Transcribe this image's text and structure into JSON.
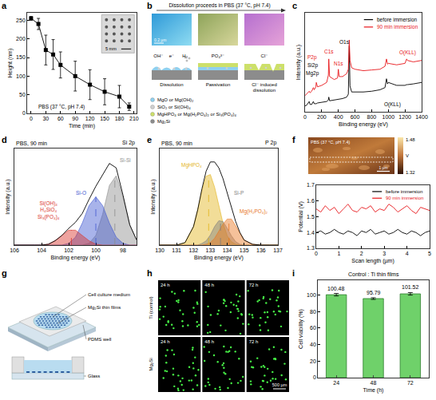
{
  "chart_data": [
    {
      "panel": "a",
      "type": "line",
      "x": [
        0,
        15,
        30,
        45,
        60,
        90,
        120,
        150,
        180,
        200
      ],
      "values": [
        255,
        240,
        170,
        158,
        130,
        100,
        77,
        58,
        45,
        18
      ],
      "error": [
        5,
        15,
        40,
        40,
        35,
        40,
        40,
        35,
        30,
        10
      ],
      "color": "#000000",
      "marker": "square",
      "xlabel": "Time (min)",
      "ylabel": "Height (nm)",
      "xlim": [
        -8,
        215
      ],
      "xticks": [
        0,
        30,
        60,
        90,
        120,
        150,
        180,
        210
      ],
      "ylim": [
        0,
        270
      ],
      "yticks": [
        0,
        50,
        100,
        150,
        200,
        250
      ],
      "annotations": [
        {
          "text": "PBS (37 °C, pH 7.4)",
          "x": 62,
          "y": 18
        }
      ],
      "inset": {
        "scale": "5 mm"
      }
    },
    {
      "panel": "c",
      "type": "line",
      "x": [
        0,
        20,
        50,
        60,
        80,
        100,
        110,
        130,
        135,
        150,
        200,
        260,
        280,
        285,
        295,
        350,
        390,
        400,
        410,
        450,
        500,
        520,
        531,
        540,
        560,
        600,
        700,
        800,
        900,
        960,
        978,
        990,
        1000,
        1100,
        1200,
        1220,
        1230,
        1300,
        1400
      ],
      "series": [
        {
          "name": "before immersion",
          "color": "#000000",
          "values": [
            8,
            9,
            14,
            10,
            10,
            14,
            11,
            11,
            11,
            12,
            13,
            14,
            16,
            20,
            15,
            16,
            17,
            17,
            17,
            18,
            20,
            24,
            90,
            35,
            27,
            27,
            27,
            28,
            30,
            33,
            45,
            38,
            40,
            36,
            36,
            37,
            37,
            38,
            40
          ]
        },
        {
          "name": "90 min immersion",
          "color": "#e8161b",
          "values": [
            22,
            24,
            28,
            26,
            28,
            33,
            30,
            34,
            40,
            34,
            36,
            40,
            50,
            72,
            48,
            44,
            46,
            58,
            48,
            48,
            52,
            58,
            98,
            70,
            60,
            58,
            56,
            57,
            58,
            62,
            72,
            65,
            66,
            64,
            66,
            72,
            70,
            68,
            70
          ]
        }
      ],
      "xlabel": "Binding energy (eV)",
      "ylabel": "Intensity (a.u.)",
      "xlim": [
        0,
        1400
      ],
      "xticks": [
        0,
        200,
        400,
        600,
        800,
        1000,
        1200,
        1400
      ],
      "ylim": [
        0,
        135
      ],
      "tick_labels": "x",
      "legend": "top right",
      "annotations": [
        {
          "text": "Mg2p",
          "x": 90,
          "y": 52,
          "color": "#000000"
        },
        {
          "text": "Si2p",
          "x": 90,
          "y": 63,
          "color": "#000000"
        },
        {
          "text": "P2p",
          "x": 90,
          "y": 74,
          "color": "#e8161b"
        },
        {
          "text": "C1s",
          "x": 285,
          "y": 82,
          "color": "#e8161b"
        },
        {
          "text": "N1s",
          "x": 400,
          "y": 66,
          "color": "#e8161b"
        },
        {
          "text": "O1s",
          "x": 470,
          "y": 95,
          "color": "#000000"
        },
        {
          "text": "O(KLL)",
          "x": 1050,
          "y": 10,
          "color": "#000000"
        },
        {
          "text": "O(KLL)",
          "x": 1230,
          "y": 81,
          "color": "#e8161b"
        }
      ]
    },
    {
      "panel": "d",
      "type": "line",
      "title": "Si 2p",
      "subtitle": "PBS, 90 min",
      "x": [
        97,
        97.5,
        98,
        98.5,
        99,
        99.5,
        100,
        100.5,
        101,
        101.5,
        102,
        102.5,
        103,
        103.5,
        104,
        104.5,
        105,
        105.5,
        106
      ],
      "series": [
        {
          "name": "Si-Si",
          "type": "area",
          "color": "#8c8c8c",
          "center": 98.6,
          "label": {
            "x": 97.8,
            "y": 97
          },
          "values": [
            6,
            23,
            55,
            79,
            68,
            35,
            11,
            2,
            0,
            0,
            0,
            0,
            0,
            0,
            0,
            0,
            0,
            0,
            0
          ]
        },
        {
          "name": "Si-O",
          "type": "area",
          "color": "#3f57d0",
          "center": 100,
          "label": {
            "x": 101.1,
            "y": 60
          },
          "values": [
            0,
            0,
            2,
            9,
            25,
            45,
            55,
            45,
            25,
            9,
            2,
            0,
            0,
            0,
            0,
            0,
            0,
            0,
            0
          ]
        },
        {
          "name": "Si(OH)₄\nH₄SiO₄\nSi₃(PO₄)₄",
          "type": "area",
          "color": "#d9342b",
          "center": 101.8,
          "label": {
            "x": 103.5,
            "y": 40
          },
          "values": [
            0,
            0,
            0,
            0,
            0,
            0,
            1,
            5,
            11,
            17,
            17,
            11,
            5,
            1,
            0,
            0,
            0,
            0,
            0
          ]
        },
        {
          "type": "line",
          "color": "#000000",
          "values": [
            6,
            23,
            57,
            88,
            93,
            80,
            67,
            52,
            36,
            26,
            19,
            11,
            5,
            1,
            0,
            0,
            0,
            0,
            0
          ]
        }
      ],
      "xlabel": "Binding energy (eV)",
      "ylabel": "Intensity (a.u.)",
      "xlim": [
        106,
        97
      ],
      "xticks": [
        106,
        104,
        102,
        100,
        98
      ],
      "ylim": [
        0,
        110
      ],
      "tick_labels": "x"
    },
    {
      "panel": "e",
      "type": "line",
      "title": "P 2p",
      "subtitle": "PBS, 90 min",
      "x": [
        130,
        130.5,
        131,
        131.5,
        132,
        132.25,
        132.5,
        132.75,
        133,
        133.25,
        133.5,
        133.75,
        134,
        134.25,
        134.5,
        134.75,
        135,
        135.5,
        136,
        136.5,
        137
      ],
      "series": [
        {
          "name": "MgHPO₄",
          "type": "area",
          "color": "#e3b41b",
          "center": 132.9,
          "label": {
            "x": 131.9,
            "y": 95
          },
          "values": [
            0,
            0,
            0,
            3,
            22,
            42,
            65,
            82,
            84,
            69,
            47,
            26,
            11,
            4,
            1,
            0,
            0,
            0,
            0,
            0,
            0
          ]
        },
        {
          "name": "Si-P",
          "type": "area",
          "color": "#7f7f7f",
          "center": 133.6,
          "label": {
            "x": 134.7,
            "y": 62
          },
          "values": [
            0,
            0,
            0,
            0,
            0,
            0,
            2,
            5,
            12,
            22,
            29,
            28,
            20,
            11,
            4,
            1,
            0,
            0,
            0,
            0,
            0
          ]
        },
        {
          "name": "Mg(H₂PO₄)₂",
          "type": "area",
          "color": "#e8761e",
          "center": 134.1,
          "label": {
            "x": 135.6,
            "y": 40
          },
          "values": [
            0,
            0,
            0,
            0,
            0,
            0,
            0,
            1,
            3,
            8,
            16,
            25,
            31,
            31,
            23,
            14,
            6,
            1,
            0,
            0,
            0
          ]
        },
        {
          "type": "line",
          "color": "#000000",
          "values": [
            0,
            0,
            0,
            3,
            22,
            42,
            67,
            88,
            99,
            99,
            92,
            79,
            62,
            46,
            28,
            15,
            6,
            1,
            0,
            0,
            0
          ]
        }
      ],
      "xlabel": "Binding energy (eV)",
      "ylabel": "Intensity (a.u.)",
      "xlim": [
        130,
        137
      ],
      "xticks": [
        130,
        131,
        132,
        133,
        134,
        135,
        136,
        137
      ],
      "ylim": [
        0,
        115
      ],
      "tick_labels": "x"
    },
    {
      "panel": "f",
      "type": "line",
      "x": [
        0,
        0.2,
        0.4,
        0.6,
        0.8,
        1,
        1.2,
        1.4,
        1.6,
        1.8,
        2,
        2.2,
        2.4,
        2.6,
        2.8,
        3,
        3.2,
        3.4,
        3.6,
        3.8,
        4,
        4.2,
        4.4,
        4.6,
        4.8,
        5
      ],
      "series": [
        {
          "name": "before immersion",
          "color": "#000000",
          "values": [
            1.4,
            1.41,
            1.39,
            1.4,
            1.42,
            1.4,
            1.39,
            1.41,
            1.4,
            1.38,
            1.41,
            1.4,
            1.42,
            1.39,
            1.4,
            1.41,
            1.39,
            1.4,
            1.42,
            1.4,
            1.39,
            1.41,
            1.4,
            1.38,
            1.4,
            1.41
          ]
        },
        {
          "name": "90 min immersion",
          "color": "#e8161b",
          "values": [
            1.55,
            1.53,
            1.57,
            1.54,
            1.56,
            1.52,
            1.55,
            1.58,
            1.54,
            1.53,
            1.56,
            1.55,
            1.57,
            1.53,
            1.55,
            1.54,
            1.58,
            1.56,
            1.53,
            1.55,
            1.57,
            1.54,
            1.52,
            1.56,
            1.55,
            1.54
          ]
        }
      ],
      "xlabel": "Scan length (µm)",
      "ylabel": "Potential (V)",
      "xlim": [
        0,
        5
      ],
      "xticks": [
        0,
        1,
        2,
        3,
        4,
        5
      ],
      "ylim": [
        1.3,
        1.7
      ],
      "yticks": [
        1.3,
        1.4,
        1.5,
        1.6,
        1.7
      ],
      "legend": "top right"
    },
    {
      "panel": "i",
      "type": "bar",
      "title": "Control : Ti thin films",
      "categories": [
        "24",
        "48",
        "72"
      ],
      "values": [
        100.48,
        95.79,
        101.52
      ],
      "error": [
        1.5,
        1,
        1.5
      ],
      "color": "#6fd16a",
      "xlabel": "Time (h)",
      "ylabel": "Cell viability (%)",
      "ylim": [
        0,
        118
      ],
      "yticks": [
        0,
        20,
        40,
        60,
        80,
        100
      ],
      "data_labels": true
    }
  ],
  "diagrams": {
    "b": {
      "panel": "b",
      "header": "Dissolution proceeds in PBS (37 °C, pH 7.4)",
      "scale": "0.2 µm",
      "stages": [
        {
          "caption": "Dissolution",
          "ions": [
            "OH⁻",
            "e⁻",
            "H₂"
          ]
        },
        {
          "caption": "Passivation",
          "ions": [
            "PO₄³⁻"
          ]
        },
        {
          "caption": "Cl⁻ induced dissolution",
          "ions": [
            "Cl⁻"
          ]
        }
      ],
      "legend": [
        {
          "label": "MgO or Mg(OH)₂",
          "color": "#8fd0ef"
        },
        {
          "label": "SiO₂ or Si(OH)₄",
          "color": "#d0d0d0"
        },
        {
          "label": "MgHPO₄ or Mg(H₂PO₄)₂ or Si₃(PO₄)₄",
          "color": "#cde06a"
        },
        {
          "label": "Mg₂Si",
          "color": "#8c8c8c"
        }
      ]
    },
    "f": {
      "overlay": "PBS (37 °C, pH 7.4)",
      "colorbar_max": "1.48",
      "colorbar_unit": "V",
      "colorbar_min": "1.32",
      "scale": "1 µm"
    },
    "g": {
      "panel": "g",
      "labels": [
        "Cell culture medium",
        "Mg₂Si thin films",
        "PDMS well",
        "Glass"
      ]
    },
    "h": {
      "panel": "h",
      "columns": [
        "24 h",
        "48 h",
        "72 h"
      ],
      "rows": [
        "Ti (control)",
        "Mg₂Si"
      ],
      "scale": "500 µm"
    }
  }
}
